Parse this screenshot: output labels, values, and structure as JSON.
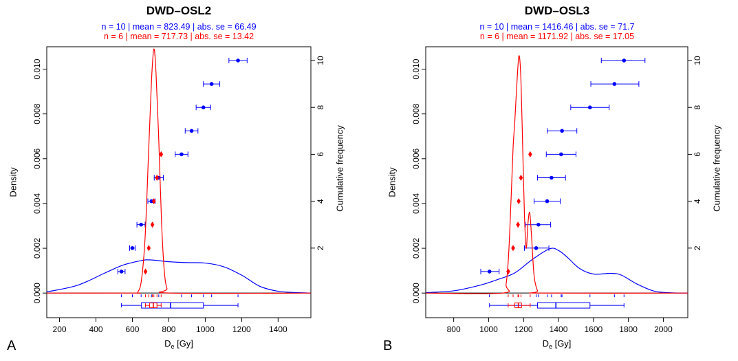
{
  "panels": [
    {
      "label": "A",
      "title": "DWD–OSL2",
      "stats_blue": "n = 10 | mean = 823.49 | abs. se = 66.49",
      "stats_red": "n = 6 | mean = 717.73 | abs. se = 13.42",
      "xlabel": "De [Gy]",
      "ylabel_left": "Density",
      "ylabel_right": "Cumulative frequency"
    },
    {
      "label": "B",
      "title": "DWD–OSL3",
      "stats_blue": "n = 10 | mean = 1416.46 | abs. se = 71.7",
      "stats_red": "n = 6 | mean = 1171.92 | abs. se = 17.05",
      "xlabel": "De [Gy]",
      "ylabel_left": "Density",
      "ylabel_right": "Cumulative frequency"
    }
  ],
  "colors": {
    "series_blue": "#0000ff",
    "series_red": "#ff0000",
    "axis": "#000000"
  },
  "chart_data": [
    {
      "type": "scatter",
      "title": "DWD–OSL2",
      "xlabel": "De [Gy]",
      "ylabel": "Density",
      "ylabel_right": "Cumulative frequency",
      "xlim": [
        130,
        1580
      ],
      "ylim": [
        -0.0011,
        0.011
      ],
      "xticks": [
        200,
        400,
        600,
        800,
        1000,
        1200,
        1400
      ],
      "yticks": [
        0.0,
        0.002,
        0.004,
        0.006,
        0.008,
        0.01
      ],
      "rticks": [
        2,
        4,
        6,
        8,
        10
      ],
      "series": [
        {
          "name": "n = 10",
          "color": "#0000ff",
          "points": [
            {
              "x": 540,
              "cf": 1,
              "lo": 520,
              "hi": 560
            },
            {
              "x": 600,
              "cf": 2,
              "lo": 585,
              "hi": 615
            },
            {
              "x": 648,
              "cf": 3,
              "lo": 625,
              "hi": 670
            },
            {
              "x": 705,
              "cf": 4,
              "lo": 685,
              "hi": 725
            },
            {
              "x": 745,
              "cf": 5,
              "lo": 720,
              "hi": 770
            },
            {
              "x": 870,
              "cf": 6,
              "lo": 835,
              "hi": 905
            },
            {
              "x": 925,
              "cf": 7,
              "lo": 890,
              "hi": 960
            },
            {
              "x": 990,
              "cf": 8,
              "lo": 950,
              "hi": 1030
            },
            {
              "x": 1035,
              "cf": 9,
              "lo": 990,
              "hi": 1080
            },
            {
              "x": 1180,
              "cf": 10,
              "lo": 1130,
              "hi": 1230
            }
          ],
          "density": [
            [
              130,
              5e-05
            ],
            [
              300,
              0.00035
            ],
            [
              450,
              0.0009
            ],
            [
              550,
              0.00125
            ],
            [
              650,
              0.00145
            ],
            [
              700,
              0.00148
            ],
            [
              800,
              0.0014
            ],
            [
              900,
              0.00136
            ],
            [
              1000,
              0.00134
            ],
            [
              1100,
              0.00118
            ],
            [
              1200,
              0.0008
            ],
            [
              1300,
              0.0003
            ],
            [
              1400,
              8e-05
            ],
            [
              1500,
              2e-05
            ],
            [
              1580,
              0.0
            ]
          ],
          "box": {
            "min": 540,
            "q1": 650,
            "median": 810,
            "q3": 990,
            "max": 1180,
            "ticks": [
              540,
              600,
              648,
              705,
              745,
              870,
              925,
              990,
              1035,
              1180
            ]
          }
        },
        {
          "name": "n = 6",
          "color": "#ff0000",
          "points": [
            {
              "x": 672,
              "cf": 1
            },
            {
              "x": 690,
              "cf": 2
            },
            {
              "x": 710,
              "cf": 3
            },
            {
              "x": 718,
              "cf": 4
            },
            {
              "x": 735,
              "cf": 5
            },
            {
              "x": 758,
              "cf": 6
            }
          ],
          "density": [
            [
              130,
              0
            ],
            [
              600,
              0
            ],
            [
              630,
              5e-05
            ],
            [
              650,
              0.0006
            ],
            [
              670,
              0.0025
            ],
            [
              690,
              0.0065
            ],
            [
              705,
              0.0095
            ],
            [
              718,
              0.0109
            ],
            [
              730,
              0.0098
            ],
            [
              745,
              0.0068
            ],
            [
              760,
              0.0032
            ],
            [
              775,
              0.001
            ],
            [
              790,
              0.0002
            ],
            [
              810,
              0
            ],
            [
              1580,
              0
            ]
          ],
          "box": {
            "min": 672,
            "q1": 695,
            "median": 715,
            "q3": 735,
            "max": 758,
            "ticks": [
              672,
              690,
              710,
              718,
              735,
              758
            ]
          }
        }
      ]
    },
    {
      "type": "scatter",
      "title": "DWD–OSL3",
      "xlabel": "De [Gy]",
      "ylabel": "Density",
      "ylabel_right": "Cumulative frequency",
      "xlim": [
        640,
        2140
      ],
      "ylim": [
        -0.0011,
        0.011
      ],
      "xticks": [
        800,
        1000,
        1200,
        1400,
        1600,
        1800,
        2000
      ],
      "yticks": [
        0.0,
        0.002,
        0.004,
        0.006,
        0.008,
        0.01
      ],
      "rticks": [
        2,
        4,
        6,
        8,
        10
      ],
      "series": [
        {
          "name": "n = 10",
          "color": "#0000ff",
          "points": [
            {
              "x": 1005,
              "cf": 1,
              "lo": 955,
              "hi": 1060
            },
            {
              "x": 1272,
              "cf": 2,
              "lo": 1205,
              "hi": 1345
            },
            {
              "x": 1285,
              "cf": 3,
              "lo": 1210,
              "hi": 1355
            },
            {
              "x": 1335,
              "cf": 4,
              "lo": 1260,
              "hi": 1410
            },
            {
              "x": 1360,
              "cf": 5,
              "lo": 1280,
              "hi": 1440
            },
            {
              "x": 1415,
              "cf": 6,
              "lo": 1330,
              "hi": 1500
            },
            {
              "x": 1420,
              "cf": 7,
              "lo": 1335,
              "hi": 1505
            },
            {
              "x": 1580,
              "cf": 8,
              "lo": 1470,
              "hi": 1690
            },
            {
              "x": 1720,
              "cf": 9,
              "lo": 1585,
              "hi": 1860
            },
            {
              "x": 1775,
              "cf": 10,
              "lo": 1645,
              "hi": 1895
            }
          ],
          "density": [
            [
              640,
              2e-05
            ],
            [
              800,
              0.0001
            ],
            [
              950,
              0.00035
            ],
            [
              1050,
              0.0006
            ],
            [
              1150,
              0.0009
            ],
            [
              1250,
              0.0015
            ],
            [
              1350,
              0.00198
            ],
            [
              1400,
              0.0019
            ],
            [
              1450,
              0.0016
            ],
            [
              1520,
              0.0011
            ],
            [
              1600,
              0.00085
            ],
            [
              1700,
              0.00088
            ],
            [
              1760,
              0.0008
            ],
            [
              1850,
              0.0004
            ],
            [
              1950,
              8e-05
            ],
            [
              2050,
              1e-05
            ],
            [
              2140,
              0.0
            ]
          ],
          "box": {
            "min": 1005,
            "q1": 1280,
            "median": 1385,
            "q3": 1580,
            "max": 1775,
            "ticks": [
              1005,
              1272,
              1285,
              1335,
              1360,
              1415,
              1420,
              1580,
              1720,
              1775
            ]
          }
        },
        {
          "name": "n = 6",
          "color": "#ff0000",
          "points": [
            {
              "x": 1112,
              "cf": 1
            },
            {
              "x": 1140,
              "cf": 2
            },
            {
              "x": 1168,
              "cf": 3
            },
            {
              "x": 1172,
              "cf": 4
            },
            {
              "x": 1185,
              "cf": 5
            },
            {
              "x": 1238,
              "cf": 6
            }
          ],
          "density": [
            [
              640,
              0
            ],
            [
              1080,
              0
            ],
            [
              1100,
              0.0004
            ],
            [
              1115,
              0.0018
            ],
            [
              1130,
              0.0045
            ],
            [
              1140,
              0.0065
            ],
            [
              1150,
              0.0077
            ],
            [
              1165,
              0.0098
            ],
            [
              1175,
              0.0106
            ],
            [
              1185,
              0.0095
            ],
            [
              1195,
              0.0065
            ],
            [
              1205,
              0.0035
            ],
            [
              1215,
              0.002
            ],
            [
              1225,
              0.0031
            ],
            [
              1235,
              0.0036
            ],
            [
              1245,
              0.0026
            ],
            [
              1260,
              0.0008
            ],
            [
              1280,
              0.0001
            ],
            [
              1300,
              0
            ],
            [
              2140,
              0
            ]
          ],
          "box": {
            "min": 1112,
            "q1": 1150,
            "median": 1170,
            "q3": 1188,
            "max": 1238,
            "ticks": [
              1112,
              1140,
              1168,
              1172,
              1185,
              1238
            ]
          }
        }
      ]
    }
  ]
}
